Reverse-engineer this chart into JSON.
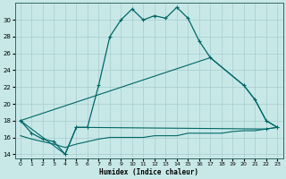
{
  "background_color": "#c8e8e8",
  "grid_color": "#a8cccc",
  "line_color": "#006666",
  "xlabel": "Humidex (Indice chaleur)",
  "xlim": [
    -0.5,
    23.5
  ],
  "ylim": [
    13.5,
    32.0
  ],
  "yticks": [
    14,
    16,
    18,
    20,
    22,
    24,
    26,
    28,
    30
  ],
  "xticks": [
    0,
    1,
    2,
    3,
    4,
    5,
    6,
    7,
    8,
    9,
    10,
    11,
    12,
    13,
    14,
    15,
    16,
    17,
    18,
    19,
    20,
    21,
    22,
    23
  ],
  "curve_main_x": [
    0,
    1,
    2,
    3,
    4,
    5,
    6,
    7,
    8,
    9,
    10,
    11,
    12,
    13,
    14,
    15,
    16,
    17,
    20,
    21,
    22,
    23
  ],
  "curve_main_y": [
    18.0,
    16.5,
    15.8,
    15.5,
    14.0,
    17.2,
    17.2,
    22.2,
    28.0,
    30.0,
    31.3,
    30.0,
    30.5,
    30.2,
    31.5,
    30.2,
    27.5,
    25.5,
    22.2,
    20.5,
    18.0,
    17.2
  ],
  "curve_diag_x": [
    0,
    17,
    20,
    21,
    22,
    23
  ],
  "curve_diag_y": [
    18.0,
    25.5,
    22.2,
    20.5,
    18.0,
    17.2
  ],
  "curve_flat_x": [
    0,
    1,
    2,
    3,
    4,
    5,
    6,
    7,
    8,
    9,
    10,
    11,
    12,
    13,
    14,
    15,
    16,
    17,
    18,
    19,
    20,
    21,
    22,
    23
  ],
  "curve_flat_y": [
    16.2,
    15.8,
    15.5,
    15.2,
    14.8,
    15.2,
    15.5,
    15.8,
    16.0,
    16.0,
    16.0,
    16.0,
    16.2,
    16.2,
    16.2,
    16.5,
    16.5,
    16.5,
    16.5,
    16.7,
    16.8,
    16.8,
    17.0,
    17.2
  ],
  "curve_tri_x": [
    0,
    4,
    5,
    22,
    23
  ],
  "curve_tri_y": [
    18.0,
    14.0,
    17.2,
    17.0,
    17.2
  ]
}
